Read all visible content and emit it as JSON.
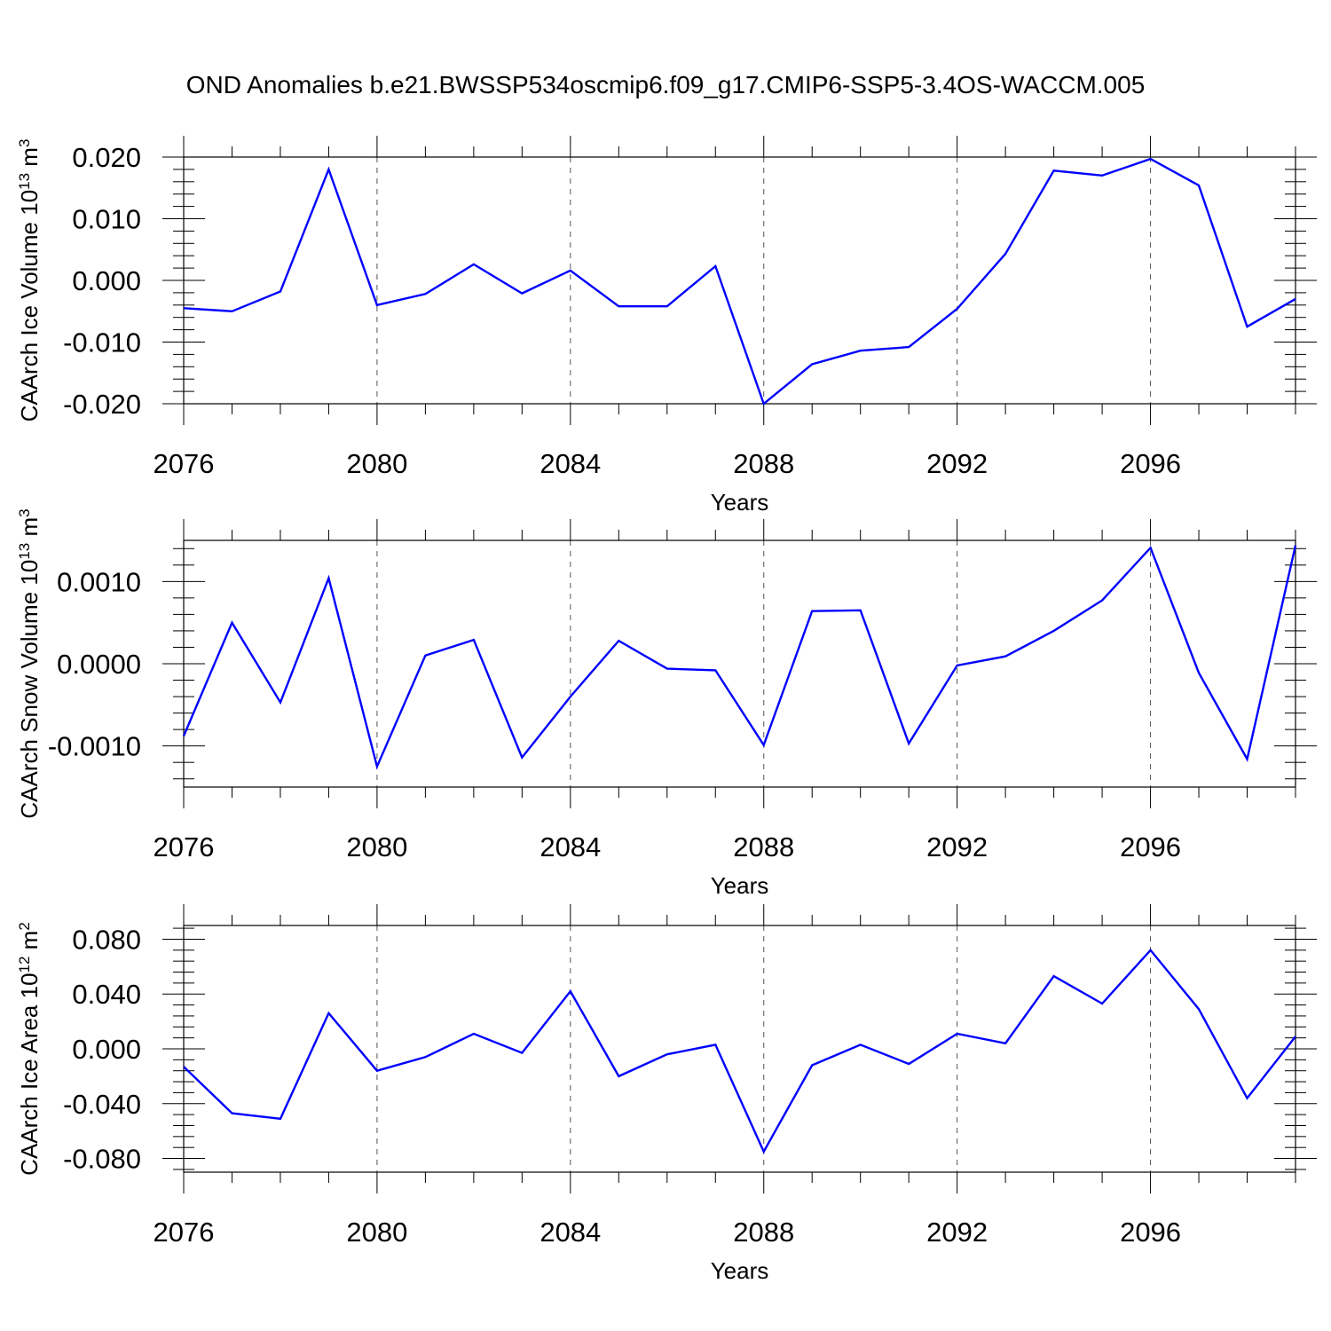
{
  "title": "OND Anomalies b.e21.BWSSP534oscmip6.f09_g17.CMIP6-SSP5-3.4OS-WACCM.005",
  "chart_data": [
    {
      "type": "line",
      "ylabel_main": "CAArch Ice Volume 10",
      "ylabel_exp": "13",
      "ylabel_unit": " m",
      "ylabel_unit_exp": "3",
      "xlabel": "Years",
      "xlim": [
        2076,
        2099
      ],
      "ylim": [
        -0.02,
        0.02
      ],
      "x_ticks": [
        2076,
        2080,
        2084,
        2088,
        2092,
        2096
      ],
      "x_tick_labels": [
        "2076",
        "2080",
        "2084",
        "2088",
        "2092",
        "2096"
      ],
      "y_ticks": [
        -0.02,
        -0.01,
        0.0,
        0.01,
        0.02
      ],
      "y_tick_labels": [
        "-0.020",
        "-0.010",
        "0.000",
        "0.010",
        "0.020"
      ],
      "grid_x": [
        2080,
        2084,
        2088,
        2092,
        2096
      ],
      "color": "#0000ff",
      "x": [
        2076,
        2077,
        2078,
        2079,
        2080,
        2081,
        2082,
        2083,
        2084,
        2085,
        2086,
        2087,
        2088,
        2089,
        2090,
        2091,
        2092,
        2093,
        2094,
        2095,
        2096,
        2097,
        2098,
        2099
      ],
      "values": [
        -0.0045,
        -0.005,
        -0.0018,
        0.018,
        -0.004,
        -0.0022,
        0.0026,
        -0.0021,
        0.0016,
        -0.0042,
        -0.0042,
        0.0023,
        -0.02,
        -0.0136,
        -0.0114,
        -0.0108,
        -0.0046,
        0.0043,
        0.0178,
        0.017,
        0.0197,
        0.0154,
        -0.0075,
        -0.003
      ]
    },
    {
      "type": "line",
      "ylabel_main": "CAArch Snow Volume 10",
      "ylabel_exp": "13",
      "ylabel_unit": " m",
      "ylabel_unit_exp": "3",
      "xlabel": "Years",
      "xlim": [
        2076,
        2099
      ],
      "ylim": [
        -0.0015,
        0.0015
      ],
      "x_ticks": [
        2076,
        2080,
        2084,
        2088,
        2092,
        2096
      ],
      "x_tick_labels": [
        "2076",
        "2080",
        "2084",
        "2088",
        "2092",
        "2096"
      ],
      "y_ticks": [
        -0.001,
        0.0,
        0.001
      ],
      "y_tick_labels": [
        "-0.0010",
        "0.0000",
        "0.0010"
      ],
      "grid_x": [
        2080,
        2084,
        2088,
        2092,
        2096
      ],
      "color": "#0000ff",
      "x": [
        2076,
        2077,
        2078,
        2079,
        2080,
        2081,
        2082,
        2083,
        2084,
        2085,
        2086,
        2087,
        2088,
        2089,
        2090,
        2091,
        2092,
        2093,
        2094,
        2095,
        2096,
        2097,
        2098,
        2099
      ],
      "values": [
        -0.00088,
        0.0005,
        -0.00047,
        0.00104,
        -0.00125,
        0.0001,
        0.00029,
        -0.00114,
        -0.0004,
        0.00028,
        -6e-05,
        -8e-05,
        -0.00099,
        0.00064,
        0.00065,
        -0.00097,
        -2e-05,
        9e-05,
        0.0004,
        0.00077,
        0.00141,
        -0.00011,
        -0.00116,
        0.00144
      ]
    },
    {
      "type": "line",
      "ylabel_main": "CAArch Ice Area 10",
      "ylabel_exp": "12",
      "ylabel_unit": " m",
      "ylabel_unit_exp": "2",
      "xlabel": "Years",
      "xlim": [
        2076,
        2099
      ],
      "ylim": [
        -0.09,
        0.09
      ],
      "x_ticks": [
        2076,
        2080,
        2084,
        2088,
        2092,
        2096
      ],
      "x_tick_labels": [
        "2076",
        "2080",
        "2084",
        "2088",
        "2092",
        "2096"
      ],
      "y_ticks": [
        -0.08,
        -0.04,
        0.0,
        0.04,
        0.08
      ],
      "y_tick_labels": [
        "-0.080",
        "-0.040",
        "0.000",
        "0.040",
        "0.080"
      ],
      "grid_x": [
        2080,
        2084,
        2088,
        2092,
        2096
      ],
      "color": "#0000ff",
      "x": [
        2076,
        2077,
        2078,
        2079,
        2080,
        2081,
        2082,
        2083,
        2084,
        2085,
        2086,
        2087,
        2088,
        2089,
        2090,
        2091,
        2092,
        2093,
        2094,
        2095,
        2096,
        2097,
        2098,
        2099
      ],
      "values": [
        -0.013,
        -0.047,
        -0.051,
        0.026,
        -0.016,
        -0.006,
        0.011,
        -0.003,
        0.042,
        -0.02,
        -0.004,
        0.003,
        -0.075,
        -0.012,
        0.003,
        -0.011,
        0.011,
        0.004,
        0.053,
        0.033,
        0.072,
        0.029,
        -0.036,
        0.009
      ]
    }
  ]
}
